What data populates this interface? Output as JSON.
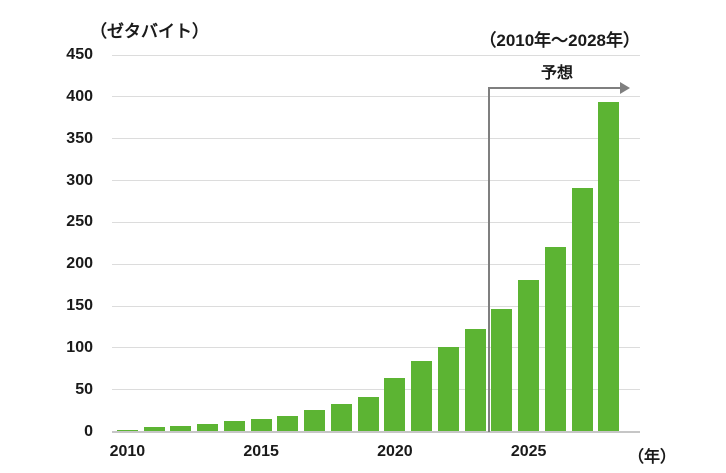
{
  "chart_data": {
    "type": "bar",
    "title_unit": "（ゼタバイト）",
    "range_label": "（2010年〜2028年）",
    "forecast_label": "予想",
    "x_axis_unit": "（年）",
    "categories": [
      2010,
      2011,
      2012,
      2013,
      2014,
      2015,
      2016,
      2017,
      2018,
      2019,
      2020,
      2021,
      2022,
      2023,
      2024,
      2025,
      2026,
      2027,
      2028
    ],
    "values": [
      2,
      5,
      6.5,
      9,
      12.5,
      15.5,
      18,
      26,
      33,
      41,
      64.2,
      84.5,
      101,
      123,
      147,
      181,
      221,
      291,
      394
    ],
    "forecast_start_year": 2024,
    "ylim": [
      0,
      450
    ],
    "yticks": [
      0,
      50,
      100,
      150,
      200,
      250,
      300,
      350,
      400,
      450
    ],
    "xtick_labels": [
      "2010",
      "2015",
      "2020",
      "2025"
    ],
    "xtick_years": [
      2010,
      2015,
      2020,
      2025
    ],
    "grid": true,
    "legend_position": "none",
    "colors": {
      "bar": "#5cb433",
      "gridline": "#dcdcdc",
      "axis_line": "#c6c6c6",
      "forecast_arrow": "#7f7f7f",
      "text": "#1a1a1a",
      "background": "#ffffff"
    }
  }
}
